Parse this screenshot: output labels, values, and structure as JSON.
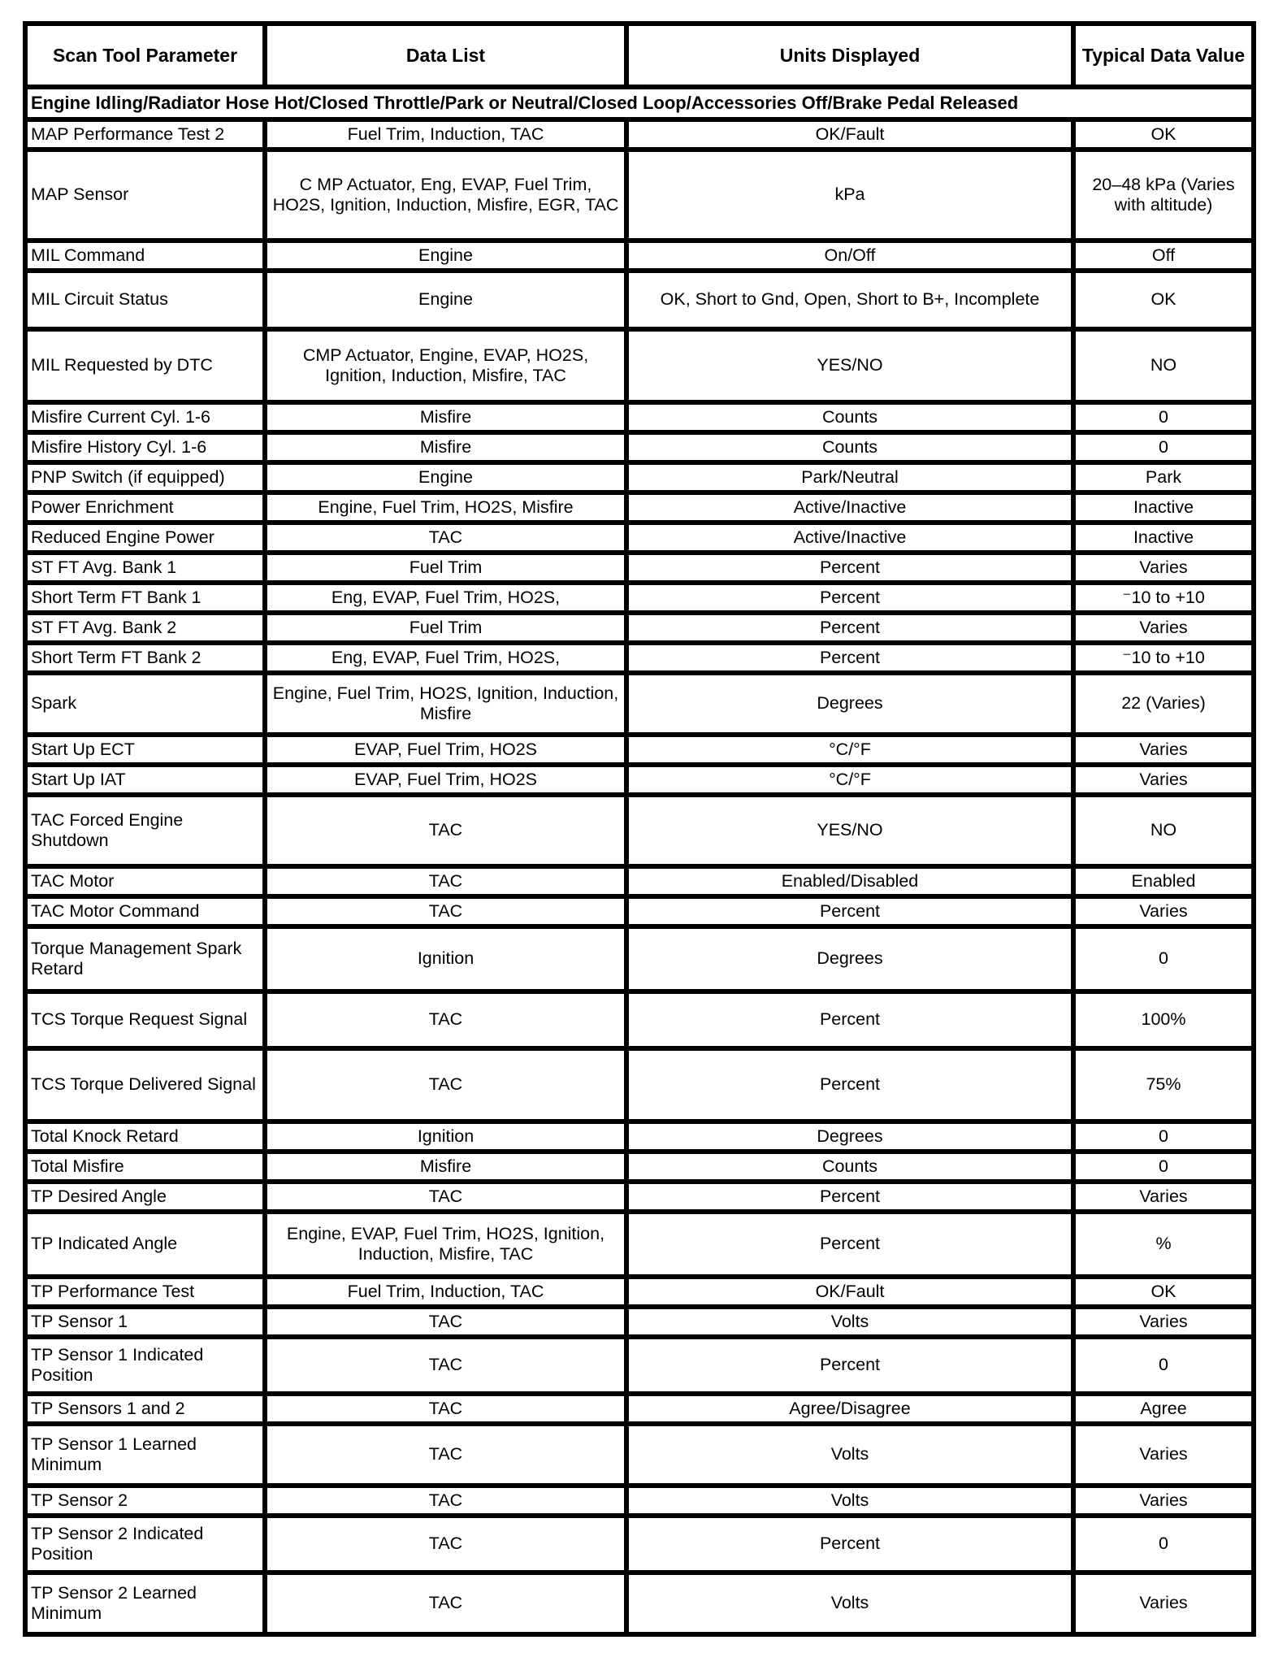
{
  "table": {
    "headers": [
      "Scan Tool Parameter",
      "Data List",
      "Units Displayed",
      "Typical Data Value"
    ],
    "test_conditions": "Engine Idling/Radiator Hose Hot/Closed Throttle/Park or Neutral/Closed Loop/Accessories Off/Brake Pedal Released",
    "rows": [
      [
        "MAP Performance Test 2",
        "Fuel Trim, Induction, TAC",
        "OK/Fault",
        "OK"
      ],
      [
        "MAP Sensor",
        "C MP Actuator, Eng, EVAP, Fuel Trim, HO2S, Ignition, Induction, Misfire, EGR, TAC",
        "kPa",
        "20–48 kPa (Varies with altitude)"
      ],
      [
        "MIL Command",
        "Engine",
        "On/Off",
        "Off"
      ],
      [
        "MIL Circuit Status",
        "Engine",
        "OK, Short to Gnd, Open, Short to B+, Incomplete",
        "OK"
      ],
      [
        "MIL Requested by DTC",
        "CMP Actuator, Engine, EVAP, HO2S, Ignition, Induction, Misfire, TAC",
        "YES/NO",
        "NO"
      ],
      [
        "Misfire Current Cyl. 1-6",
        "Misfire",
        "Counts",
        "0"
      ],
      [
        "Misfire History Cyl. 1-6",
        "Misfire",
        "Counts",
        "0"
      ],
      [
        "PNP Switch (if equipped)",
        "Engine",
        "Park/Neutral",
        "Park"
      ],
      [
        "Power Enrichment",
        "Engine, Fuel Trim, HO2S, Misfire",
        "Active/Inactive",
        "Inactive"
      ],
      [
        "Reduced Engine Power",
        "TAC",
        "Active/Inactive",
        "Inactive"
      ],
      [
        "ST FT Avg. Bank 1",
        "Fuel Trim",
        "Percent",
        "Varies"
      ],
      [
        "Short Term FT Bank 1",
        "Eng, EVAP, Fuel Trim, HO2S,",
        "Percent",
        "⁻10 to +10"
      ],
      [
        "ST FT Avg. Bank 2",
        "Fuel Trim",
        "Percent",
        "Varies"
      ],
      [
        "Short Term FT Bank 2",
        "Eng, EVAP, Fuel Trim, HO2S,",
        "Percent",
        "⁻10 to +10"
      ],
      [
        "Spark",
        "Engine, Fuel Trim, HO2S, Ignition, Induction, Misfire",
        "Degrees",
        "22 (Varies)"
      ],
      [
        "Start Up ECT",
        "EVAP, Fuel Trim, HO2S",
        "°C/°F",
        "Varies"
      ],
      [
        "Start Up IAT",
        "EVAP, Fuel Trim, HO2S",
        "°C/°F",
        "Varies"
      ],
      [
        "TAC Forced Engine Shutdown",
        "TAC",
        "YES/NO",
        "NO"
      ],
      [
        "TAC Motor",
        "TAC",
        "Enabled/Disabled",
        "Enabled"
      ],
      [
        "TAC Motor Command",
        "TAC",
        "Percent",
        "Varies"
      ],
      [
        "Torque Management Spark Retard",
        "Ignition",
        "Degrees",
        "0"
      ],
      [
        "TCS Torque Request Signal",
        "TAC",
        "Percent",
        "100%"
      ],
      [
        "TCS Torque Delivered Signal",
        "TAC",
        "Percent",
        "75%"
      ],
      [
        "Total Knock Retard",
        "Ignition",
        "Degrees",
        "0"
      ],
      [
        "Total Misfire",
        "Misfire",
        "Counts",
        "0"
      ],
      [
        "TP Desired Angle",
        "TAC",
        "Percent",
        "Varies"
      ],
      [
        "TP Indicated Angle",
        "Engine, EVAP, Fuel Trim, HO2S, Ignition, Induction, Misfire, TAC",
        "Percent",
        "%"
      ],
      [
        "TP Performance Test",
        "Fuel Trim, Induction, TAC",
        "OK/Fault",
        "OK"
      ],
      [
        "TP Sensor 1",
        "TAC",
        "Volts",
        "Varies"
      ],
      [
        "TP Sensor 1 Indicated Position",
        "TAC",
        "Percent",
        "0"
      ],
      [
        "TP Sensors 1 and 2",
        "TAC",
        "Agree/Disagree",
        "Agree"
      ],
      [
        "TP Sensor 1 Learned Minimum",
        "TAC",
        "Volts",
        "Varies"
      ],
      [
        "TP Sensor 2",
        "TAC",
        "Volts",
        "Varies"
      ],
      [
        "TP Sensor 2 Indicated Position",
        "TAC",
        "Percent",
        "0"
      ],
      [
        "TP Sensor 2 Learned Minimum",
        "TAC",
        "Volts",
        "Varies"
      ]
    ]
  }
}
